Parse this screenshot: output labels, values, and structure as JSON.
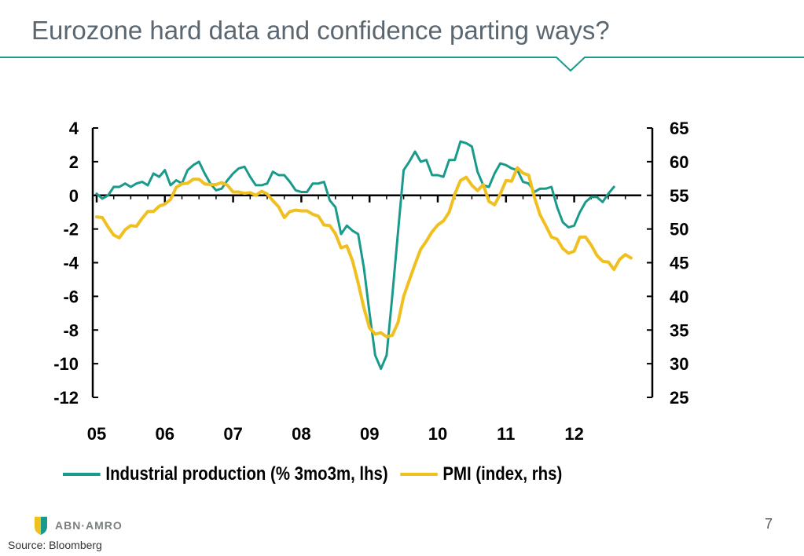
{
  "slide": {
    "title": "Eurozone hard data and confidence parting ways?",
    "page_number": "7",
    "source": "Source: Bloomberg",
    "logo_text": "ABN·AMRO",
    "accent_color": "#1a9a8b"
  },
  "chart_data": {
    "type": "line",
    "title": "",
    "x_tick_labels": [
      "05",
      "06",
      "07",
      "08",
      "09",
      "10",
      "11",
      "12"
    ],
    "xlim": [
      2005,
      2013.1
    ],
    "y_left": {
      "ticks": [
        4,
        2,
        0,
        -2,
        -4,
        -6,
        -8,
        -10,
        -12
      ],
      "lim": [
        -12,
        4
      ]
    },
    "y_right": {
      "ticks": [
        65,
        60,
        55,
        50,
        45,
        40,
        35,
        30,
        25
      ],
      "lim": [
        25,
        65
      ]
    },
    "grid": false,
    "legend_position": "bottom",
    "series": [
      {
        "name": "Industrial production (% 3mo3m, lhs)",
        "axis": "left",
        "color": "#1a9a8b",
        "x": [
          2005.0,
          2005.083,
          2005.167,
          2005.25,
          2005.333,
          2005.417,
          2005.5,
          2005.583,
          2005.667,
          2005.75,
          2005.833,
          2005.917,
          2006.0,
          2006.083,
          2006.167,
          2006.25,
          2006.333,
          2006.417,
          2006.5,
          2006.583,
          2006.667,
          2006.75,
          2006.833,
          2006.917,
          2007.0,
          2007.083,
          2007.167,
          2007.25,
          2007.333,
          2007.417,
          2007.5,
          2007.583,
          2007.667,
          2007.75,
          2007.833,
          2007.917,
          2008.0,
          2008.083,
          2008.167,
          2008.25,
          2008.333,
          2008.417,
          2008.5,
          2008.583,
          2008.667,
          2008.75,
          2008.833,
          2008.917,
          2009.0,
          2009.083,
          2009.167,
          2009.25,
          2009.333,
          2009.417,
          2009.5,
          2009.583,
          2009.667,
          2009.75,
          2009.833,
          2009.917,
          2010.0,
          2010.083,
          2010.167,
          2010.25,
          2010.333,
          2010.417,
          2010.5,
          2010.583,
          2010.667,
          2010.75,
          2010.833,
          2010.917,
          2011.0,
          2011.083,
          2011.167,
          2011.25,
          2011.333,
          2011.417,
          2011.5,
          2011.583,
          2011.667,
          2011.75,
          2011.833,
          2011.917,
          2012.0,
          2012.083,
          2012.167,
          2012.25,
          2012.333,
          2012.417,
          2012.5,
          2012.583
        ],
        "values": [
          0.1,
          -0.2,
          0.0,
          0.5,
          0.5,
          0.7,
          0.5,
          0.7,
          0.8,
          0.6,
          1.3,
          1.1,
          1.5,
          0.6,
          0.9,
          0.7,
          1.5,
          1.8,
          2.0,
          1.3,
          0.7,
          0.3,
          0.4,
          0.9,
          1.3,
          1.6,
          1.7,
          1.1,
          0.6,
          0.6,
          0.7,
          1.4,
          1.2,
          1.2,
          0.8,
          0.3,
          0.2,
          0.2,
          0.7,
          0.7,
          0.8,
          -0.3,
          -0.7,
          -2.3,
          -1.8,
          -2.1,
          -2.3,
          -4.3,
          -7.0,
          -9.5,
          -10.3,
          -9.5,
          -6.0,
          -2.2,
          1.5,
          2.0,
          2.6,
          2.0,
          2.1,
          1.2,
          1.2,
          1.1,
          2.1,
          2.1,
          3.2,
          3.1,
          2.9,
          1.4,
          0.6,
          0.5,
          1.3,
          1.9,
          1.8,
          1.6,
          1.5,
          0.8,
          0.7,
          0.2,
          0.4,
          0.4,
          0.5,
          -0.7,
          -1.6,
          -1.9,
          -1.8,
          -1.0,
          -0.4,
          -0.1,
          -0.1,
          -0.4,
          0.1,
          0.5
        ]
      },
      {
        "name": "PMI (index, rhs)",
        "axis": "right",
        "color": "#f0c020",
        "x": [
          2005.0,
          2005.083,
          2005.167,
          2005.25,
          2005.333,
          2005.417,
          2005.5,
          2005.583,
          2005.667,
          2005.75,
          2005.833,
          2005.917,
          2006.0,
          2006.083,
          2006.167,
          2006.25,
          2006.333,
          2006.417,
          2006.5,
          2006.583,
          2006.667,
          2006.75,
          2006.833,
          2006.917,
          2007.0,
          2007.083,
          2007.167,
          2007.25,
          2007.333,
          2007.417,
          2007.5,
          2007.583,
          2007.667,
          2007.75,
          2007.833,
          2007.917,
          2008.0,
          2008.083,
          2008.167,
          2008.25,
          2008.333,
          2008.417,
          2008.5,
          2008.583,
          2008.667,
          2008.75,
          2008.833,
          2008.917,
          2009.0,
          2009.083,
          2009.167,
          2009.25,
          2009.333,
          2009.417,
          2009.5,
          2009.583,
          2009.667,
          2009.75,
          2009.833,
          2009.917,
          2010.0,
          2010.083,
          2010.167,
          2010.25,
          2010.333,
          2010.417,
          2010.5,
          2010.583,
          2010.667,
          2010.75,
          2010.833,
          2010.917,
          2011.0,
          2011.083,
          2011.167,
          2011.25,
          2011.333,
          2011.417,
          2011.5,
          2011.583,
          2011.667,
          2011.75,
          2011.833,
          2011.917,
          2012.0,
          2012.083,
          2012.167,
          2012.25,
          2012.333,
          2012.417,
          2012.5,
          2012.583,
          2012.667,
          2012.75,
          2012.833
        ],
        "values": [
          51.8,
          51.7,
          50.3,
          49.1,
          48.7,
          49.9,
          50.5,
          50.4,
          51.6,
          52.6,
          52.6,
          53.4,
          53.7,
          54.4,
          56.2,
          56.7,
          56.8,
          57.4,
          57.4,
          56.7,
          56.6,
          56.6,
          56.9,
          56.5,
          55.5,
          55.5,
          55.3,
          55.4,
          55.0,
          55.6,
          55.2,
          54.2,
          53.3,
          51.7,
          52.6,
          52.8,
          52.7,
          52.7,
          52.2,
          51.9,
          50.6,
          50.5,
          49.3,
          47.2,
          47.5,
          45.3,
          42.0,
          38.3,
          35.3,
          34.4,
          34.6,
          34.0,
          34.2,
          36.1,
          40.0,
          42.4,
          44.8,
          47.0,
          48.2,
          49.6,
          50.6,
          51.2,
          52.5,
          55.2,
          57.2,
          57.7,
          56.5,
          55.7,
          56.6,
          54.1,
          53.6,
          55.2,
          57.2,
          57.1,
          59.1,
          58.3,
          58.0,
          54.7,
          52.1,
          50.5,
          48.8,
          48.5,
          47.1,
          46.4,
          46.7,
          48.8,
          48.8,
          47.6,
          46.1,
          45.2,
          45.1,
          44.0,
          45.5,
          46.2,
          45.7
        ]
      }
    ]
  }
}
